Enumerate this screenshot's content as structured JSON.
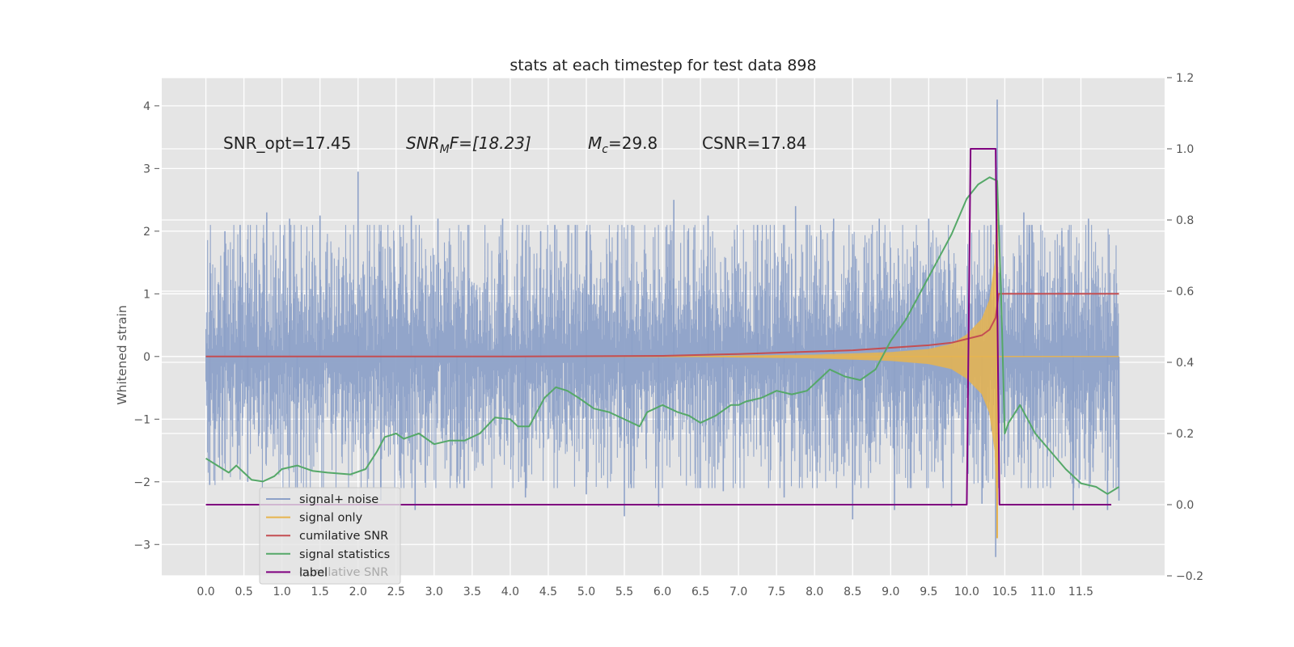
{
  "chart_data": {
    "type": "line",
    "title": "stats at each timestep for test data 898",
    "ylabel": "Whitened strain",
    "xlabel": "",
    "x_ticks": [
      "0.0",
      "0.5",
      "1.0",
      "1.5",
      "2.0",
      "2.5",
      "3.0",
      "3.5",
      "4.0",
      "4.5",
      "5.0",
      "5.5",
      "6.0",
      "6.5",
      "7.0",
      "7.5",
      "8.0",
      "8.5",
      "9.0",
      "9.5",
      "10.0",
      "10.5",
      "11.0",
      "11.5"
    ],
    "y_ticks_left": [
      "4",
      "3",
      "2",
      "1",
      "0",
      "−1",
      "−2",
      "−3"
    ],
    "y_ticks_right": [
      "1.2",
      "1.0",
      "0.8",
      "0.6",
      "0.4",
      "0.2",
      "0.0",
      "−0.2"
    ],
    "xlim": [
      -0.58,
      12.6
    ],
    "ylim_left": [
      -3.5,
      4.45
    ],
    "ylim_right": [
      -0.2,
      1.2
    ],
    "grid": true,
    "legend_position": "lower-left",
    "annotations": {
      "snr_opt": "SNR_opt=17.45",
      "snr_mf_main": "SNR",
      "snr_mf_sub": "M",
      "snr_mf_rest": "F=[18.23]",
      "mc_main": "M",
      "mc_sub": "c",
      "mc_rest": "=29.8",
      "csnr": "CSNR=17.84"
    },
    "legend_ghost_text": "cumilative SNR",
    "series": [
      {
        "name": "signal+ noise",
        "axis": "left",
        "color": "#8DA1C8",
        "description_note_free": true,
        "envelope": {
          "x": [
            0.0,
            1.0,
            2.0,
            3.0,
            4.0,
            5.0,
            6.0,
            7.0,
            8.0,
            9.0,
            9.5,
            10.0,
            10.3,
            10.4,
            10.5,
            11.0,
            11.5,
            12.0
          ],
          "upper": [
            1.5,
            1.6,
            1.6,
            1.6,
            1.6,
            1.6,
            1.6,
            1.6,
            1.6,
            1.6,
            1.6,
            1.6,
            1.9,
            1.7,
            1.6,
            1.6,
            1.6,
            1.6
          ],
          "lower": [
            -1.5,
            -1.6,
            -1.6,
            -1.6,
            -1.6,
            -1.6,
            -1.6,
            -1.6,
            -1.6,
            -1.6,
            -1.6,
            -1.6,
            -1.9,
            -1.7,
            -1.6,
            -1.6,
            -1.6,
            -1.6
          ]
        },
        "spikes": [
          [
            0.25,
            2.0
          ],
          [
            0.45,
            2.1
          ],
          [
            0.8,
            2.3
          ],
          [
            1.1,
            2.2
          ],
          [
            1.5,
            2.25
          ],
          [
            2.0,
            2.95
          ],
          [
            2.3,
            2.0
          ],
          [
            2.7,
            2.25
          ],
          [
            3.05,
            2.2
          ],
          [
            3.9,
            2.2
          ],
          [
            4.4,
            2.0
          ],
          [
            5.0,
            2.0
          ],
          [
            5.6,
            2.1
          ],
          [
            6.15,
            2.5
          ],
          [
            6.6,
            2.25
          ],
          [
            7.25,
            2.1
          ],
          [
            7.75,
            2.4
          ],
          [
            8.25,
            2.2
          ],
          [
            8.85,
            2.2
          ],
          [
            9.5,
            2.2
          ],
          [
            10.4,
            4.1
          ],
          [
            10.75,
            2.3
          ],
          [
            11.25,
            2.0
          ],
          [
            11.6,
            2.2
          ],
          [
            0.05,
            -2.05
          ],
          [
            0.55,
            -2.0
          ],
          [
            1.2,
            -2.1
          ],
          [
            2.3,
            -2.3
          ],
          [
            2.75,
            -2.45
          ],
          [
            3.3,
            -2.0
          ],
          [
            4.2,
            -2.25
          ],
          [
            5.0,
            -2.2
          ],
          [
            5.5,
            -2.55
          ],
          [
            5.95,
            -2.4
          ],
          [
            6.8,
            -2.15
          ],
          [
            7.6,
            -2.25
          ],
          [
            8.5,
            -2.6
          ],
          [
            9.05,
            -2.45
          ],
          [
            9.8,
            -2.4
          ],
          [
            10.2,
            -2.35
          ],
          [
            10.38,
            -3.2
          ],
          [
            11.4,
            -2.45
          ],
          [
            11.85,
            -2.45
          ],
          [
            12.0,
            -2.3
          ]
        ]
      },
      {
        "name": "signal only",
        "axis": "left",
        "color": "#E8B44E",
        "envelope": {
          "x": [
            6.5,
            8.0,
            9.0,
            9.5,
            9.8,
            10.0,
            10.2,
            10.3,
            10.37,
            10.4,
            10.42
          ],
          "amp": [
            0.01,
            0.03,
            0.07,
            0.12,
            0.2,
            0.35,
            0.6,
            0.9,
            1.5,
            2.6,
            0.0
          ]
        },
        "tail": [
          0.0,
          12.0
        ]
      },
      {
        "name": "cumilative SNR",
        "axis": "left",
        "color": "#C44E52",
        "x": [
          0.0,
          2.0,
          4.0,
          6.0,
          7.0,
          8.0,
          8.5,
          9.0,
          9.5,
          9.8,
          10.0,
          10.2,
          10.3,
          10.38,
          10.42,
          12.0
        ],
        "y": [
          0.0,
          0.0,
          0.0,
          0.01,
          0.04,
          0.08,
          0.1,
          0.14,
          0.18,
          0.22,
          0.28,
          0.34,
          0.43,
          0.62,
          1.0,
          1.0
        ]
      },
      {
        "name": "signal statistics",
        "axis": "right",
        "color": "#55A868",
        "x": [
          0.0,
          0.15,
          0.3,
          0.4,
          0.5,
          0.6,
          0.75,
          0.9,
          1.0,
          1.2,
          1.4,
          1.6,
          1.9,
          2.1,
          2.25,
          2.35,
          2.5,
          2.6,
          2.8,
          3.0,
          3.2,
          3.4,
          3.6,
          3.8,
          4.0,
          4.1,
          4.25,
          4.45,
          4.6,
          4.75,
          4.9,
          5.1,
          5.3,
          5.5,
          5.7,
          5.8,
          6.0,
          6.2,
          6.35,
          6.5,
          6.7,
          6.9,
          7.0,
          7.1,
          7.3,
          7.5,
          7.7,
          7.9,
          8.05,
          8.2,
          8.4,
          8.6,
          8.8,
          9.0,
          9.2,
          9.4,
          9.6,
          9.8,
          10.0,
          10.15,
          10.3,
          10.4,
          10.45,
          10.5,
          10.55,
          10.7,
          10.9,
          11.1,
          11.3,
          11.5,
          11.7,
          11.85,
          12.0
        ],
        "y": [
          0.13,
          0.11,
          0.09,
          0.11,
          0.09,
          0.07,
          0.065,
          0.08,
          0.1,
          0.11,
          0.095,
          0.09,
          0.085,
          0.1,
          0.15,
          0.19,
          0.2,
          0.185,
          0.2,
          0.17,
          0.18,
          0.18,
          0.2,
          0.245,
          0.24,
          0.22,
          0.22,
          0.3,
          0.33,
          0.32,
          0.3,
          0.27,
          0.26,
          0.24,
          0.22,
          0.26,
          0.28,
          0.26,
          0.25,
          0.23,
          0.25,
          0.28,
          0.28,
          0.29,
          0.3,
          0.32,
          0.31,
          0.32,
          0.35,
          0.38,
          0.36,
          0.35,
          0.38,
          0.46,
          0.52,
          0.6,
          0.68,
          0.76,
          0.86,
          0.9,
          0.92,
          0.91,
          0.6,
          0.2,
          0.23,
          0.28,
          0.2,
          0.15,
          0.1,
          0.06,
          0.05,
          0.03,
          0.05
        ]
      },
      {
        "name": "label",
        "axis": "right",
        "color": "#800080",
        "x": [
          0.0,
          10.0,
          10.05,
          10.38,
          10.43,
          11.9
        ],
        "y": [
          0.0,
          0.0,
          1.0,
          1.0,
          0.0,
          0.0
        ]
      }
    ]
  }
}
